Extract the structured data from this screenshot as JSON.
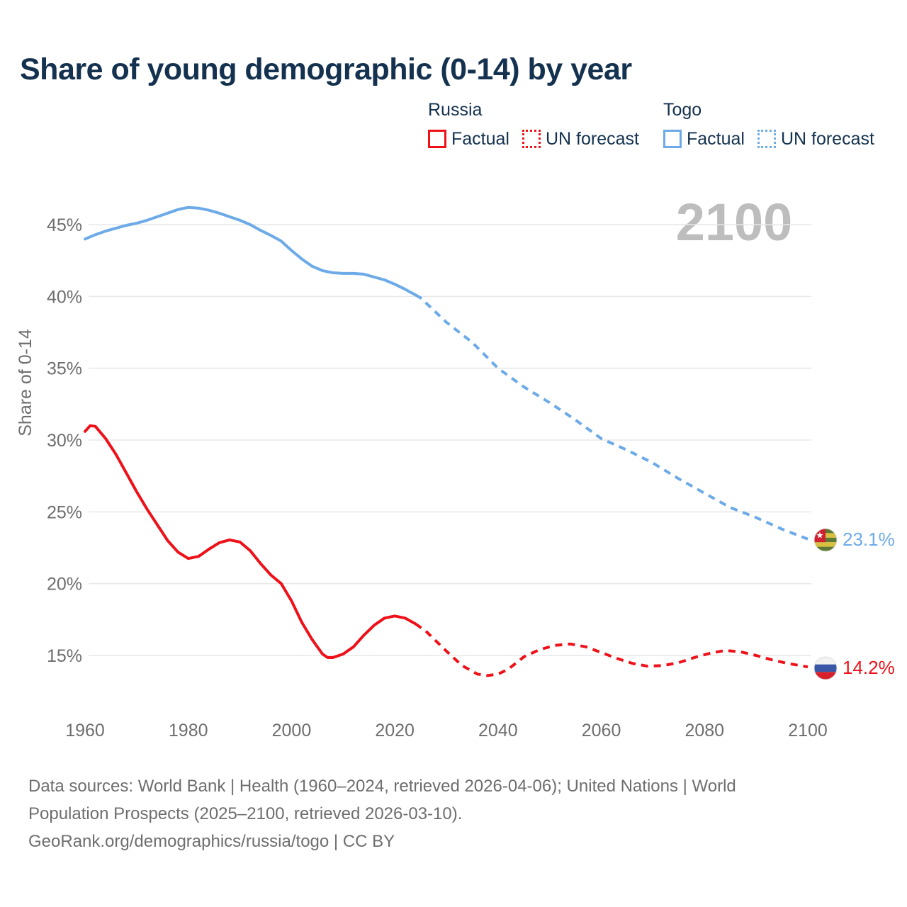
{
  "title": "Share of young demographic (0-14) by year",
  "watermark": "2100",
  "legend": {
    "groups": [
      {
        "name": "Russia",
        "factual_label": "Factual",
        "forecast_label": "UN forecast"
      },
      {
        "name": "Togo",
        "factual_label": "Factual",
        "forecast_label": "UN forecast"
      }
    ]
  },
  "colors": {
    "title_text": "#14324f",
    "legend_text": "#14324f",
    "russia_line": "#ee1119",
    "togo_line": "#6caae8",
    "axis_text": "#6e6e6e",
    "gridline": "#e7e7e7",
    "watermark": "#bdbdbd",
    "footer_text": "#6e6e6e"
  },
  "footer": {
    "line1": "Data sources: World Bank | Health (1960–2024, retrieved 2026-04-06); United Nations | World",
    "line2": "Population Prospects (2025–2100, retrieved 2026-03-10).",
    "line3": "GeoRank.org/demographics/russia/togo | CC BY"
  },
  "chart_data": {
    "type": "line",
    "title": "Share of young demographic (0-14) by year",
    "xlabel": "",
    "ylabel": "Share of 0-14",
    "x_range": [
      1960,
      2100
    ],
    "ylim": [
      13,
      47
    ],
    "grid": "horizontal",
    "legend_position": "top-right",
    "watermark": "2100",
    "yticks": [
      {
        "v": 45,
        "label": "45%"
      },
      {
        "v": 40,
        "label": "40%"
      },
      {
        "v": 35,
        "label": "35%"
      },
      {
        "v": 30,
        "label": "30%"
      },
      {
        "v": 25,
        "label": "25%"
      },
      {
        "v": 20,
        "label": "20%"
      },
      {
        "v": 15,
        "label": "15%"
      }
    ],
    "xticks": [
      {
        "v": 1960,
        "label": "1960"
      },
      {
        "v": 1980,
        "label": "1980"
      },
      {
        "v": 2000,
        "label": "2000"
      },
      {
        "v": 2020,
        "label": "2020"
      },
      {
        "v": 2040,
        "label": "2040"
      },
      {
        "v": 2060,
        "label": "2060"
      },
      {
        "v": 2080,
        "label": "2080"
      },
      {
        "v": 2100,
        "label": "2100"
      }
    ],
    "series": [
      {
        "name": "Togo — Factual",
        "country": "Togo",
        "kind": "factual",
        "color": "#6caae8",
        "points": [
          [
            1960,
            44.0
          ],
          [
            1962,
            44.3
          ],
          [
            1964,
            44.55
          ],
          [
            1966,
            44.75
          ],
          [
            1968,
            44.95
          ],
          [
            1970,
            45.1
          ],
          [
            1972,
            45.3
          ],
          [
            1974,
            45.55
          ],
          [
            1976,
            45.8
          ],
          [
            1978,
            46.05
          ],
          [
            1980,
            46.2
          ],
          [
            1982,
            46.15
          ],
          [
            1984,
            46.0
          ],
          [
            1986,
            45.8
          ],
          [
            1988,
            45.55
          ],
          [
            1990,
            45.3
          ],
          [
            1992,
            45.0
          ],
          [
            1994,
            44.6
          ],
          [
            1996,
            44.25
          ],
          [
            1998,
            43.85
          ],
          [
            2000,
            43.2
          ],
          [
            2002,
            42.6
          ],
          [
            2004,
            42.1
          ],
          [
            2006,
            41.8
          ],
          [
            2008,
            41.65
          ],
          [
            2010,
            41.6
          ],
          [
            2012,
            41.6
          ],
          [
            2014,
            41.55
          ],
          [
            2016,
            41.35
          ],
          [
            2018,
            41.15
          ],
          [
            2020,
            40.85
          ],
          [
            2022,
            40.5
          ],
          [
            2024,
            40.1
          ]
        ]
      },
      {
        "name": "Togo — UN forecast",
        "country": "Togo",
        "kind": "forecast",
        "color": "#6caae8",
        "points": [
          [
            2024,
            40.1
          ],
          [
            2025,
            39.9
          ],
          [
            2030,
            38.2
          ],
          [
            2035,
            36.8
          ],
          [
            2040,
            35.0
          ],
          [
            2045,
            33.7
          ],
          [
            2050,
            32.6
          ],
          [
            2055,
            31.4
          ],
          [
            2060,
            30.1
          ],
          [
            2065,
            29.3
          ],
          [
            2070,
            28.4
          ],
          [
            2075,
            27.3
          ],
          [
            2080,
            26.3
          ],
          [
            2085,
            25.3
          ],
          [
            2090,
            24.6
          ],
          [
            2095,
            23.8
          ],
          [
            2100,
            23.1
          ]
        ]
      },
      {
        "name": "Russia — Factual",
        "country": "Russia",
        "kind": "factual",
        "color": "#ee1119",
        "points": [
          [
            1960,
            30.6
          ],
          [
            1961,
            31.0
          ],
          [
            1962,
            30.95
          ],
          [
            1964,
            30.1
          ],
          [
            1966,
            29.0
          ],
          [
            1968,
            27.7
          ],
          [
            1970,
            26.4
          ],
          [
            1972,
            25.2
          ],
          [
            1974,
            24.1
          ],
          [
            1976,
            23.0
          ],
          [
            1978,
            22.2
          ],
          [
            1980,
            21.75
          ],
          [
            1982,
            21.9
          ],
          [
            1984,
            22.4
          ],
          [
            1986,
            22.85
          ],
          [
            1988,
            23.05
          ],
          [
            1990,
            22.9
          ],
          [
            1992,
            22.3
          ],
          [
            1994,
            21.4
          ],
          [
            1996,
            20.6
          ],
          [
            1998,
            20.0
          ],
          [
            2000,
            18.8
          ],
          [
            2002,
            17.3
          ],
          [
            2004,
            16.1
          ],
          [
            2006,
            15.1
          ],
          [
            2007,
            14.85
          ],
          [
            2008,
            14.85
          ],
          [
            2010,
            15.1
          ],
          [
            2012,
            15.6
          ],
          [
            2014,
            16.4
          ],
          [
            2016,
            17.1
          ],
          [
            2018,
            17.6
          ],
          [
            2020,
            17.75
          ],
          [
            2022,
            17.6
          ],
          [
            2024,
            17.2
          ]
        ]
      },
      {
        "name": "Russia — UN forecast",
        "country": "Russia",
        "kind": "forecast",
        "color": "#ee1119",
        "points": [
          [
            2024,
            17.2
          ],
          [
            2026,
            16.7
          ],
          [
            2028,
            16.0
          ],
          [
            2030,
            15.3
          ],
          [
            2033,
            14.3
          ],
          [
            2036,
            13.7
          ],
          [
            2038,
            13.6
          ],
          [
            2040,
            13.7
          ],
          [
            2042,
            14.05
          ],
          [
            2045,
            14.9
          ],
          [
            2048,
            15.4
          ],
          [
            2051,
            15.7
          ],
          [
            2054,
            15.8
          ],
          [
            2057,
            15.6
          ],
          [
            2060,
            15.2
          ],
          [
            2063,
            14.8
          ],
          [
            2066,
            14.45
          ],
          [
            2069,
            14.25
          ],
          [
            2072,
            14.3
          ],
          [
            2075,
            14.5
          ],
          [
            2078,
            14.85
          ],
          [
            2081,
            15.15
          ],
          [
            2084,
            15.35
          ],
          [
            2087,
            15.25
          ],
          [
            2090,
            15.0
          ],
          [
            2093,
            14.7
          ],
          [
            2096,
            14.45
          ],
          [
            2100,
            14.2
          ]
        ]
      }
    ],
    "end_labels": {
      "togo": {
        "text": "23.1%",
        "color": "#6caae8"
      },
      "russia": {
        "text": "14.2%",
        "color": "#ee1119"
      }
    }
  }
}
